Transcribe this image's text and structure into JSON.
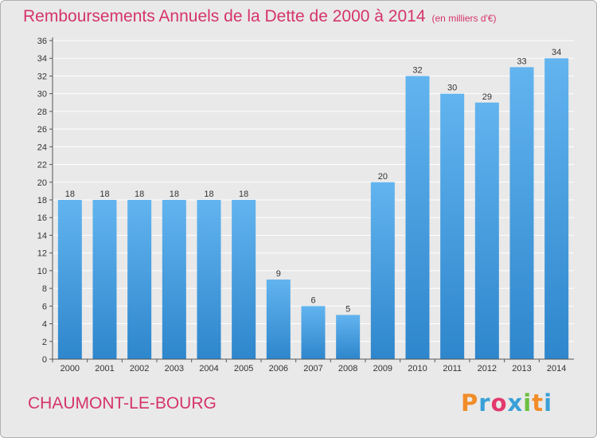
{
  "header": {
    "title": "Remboursements Annuels de la Dette de 2000 à 2014",
    "unit": "(en milliers d'€)"
  },
  "footer": {
    "commune": "CHAUMONT-LE-BOURG",
    "logo_text": "Proxiti",
    "logo_colors": [
      "#f28c28",
      "#3aa0d8",
      "#e23a6c",
      "#3aa0d8",
      "#6cbf3f",
      "#f28c28",
      "#3aa0d8"
    ]
  },
  "colors": {
    "title": "#d5346a",
    "bar_light": "#62b4ef",
    "bar_dark": "#2e86cc",
    "gridline": "#ffffff",
    "background": "#e9e9e9"
  },
  "chart_data": {
    "type": "bar",
    "title": "Remboursements Annuels de la Dette de 2000 à 2014",
    "categories": [
      "2000",
      "2001",
      "2002",
      "2003",
      "2004",
      "2005",
      "2006",
      "2007",
      "2008",
      "2009",
      "2010",
      "2011",
      "2012",
      "2013",
      "2014"
    ],
    "values": [
      18,
      18,
      18,
      18,
      18,
      18,
      9,
      6,
      5,
      20,
      32,
      30,
      29,
      33,
      34
    ],
    "ylim": [
      0,
      36
    ],
    "yticks": [
      0,
      2,
      4,
      6,
      8,
      10,
      12,
      14,
      16,
      18,
      20,
      22,
      24,
      26,
      28,
      30,
      32,
      34,
      36
    ],
    "grid": true,
    "data_labels": true
  }
}
